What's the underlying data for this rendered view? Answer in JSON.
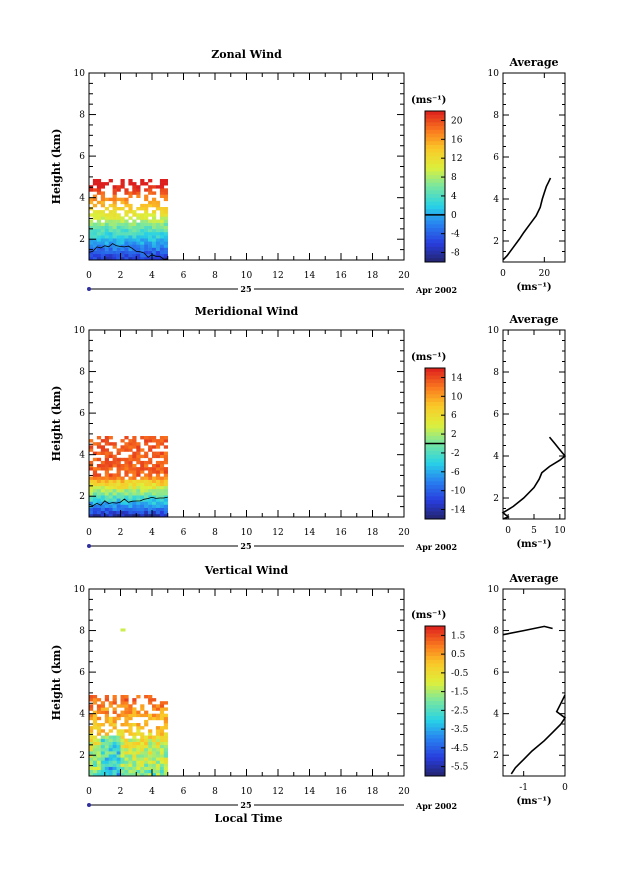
{
  "chart_data": [
    {
      "type": "heatmap",
      "title": "Zonal Wind",
      "ylabel": "Height (km)",
      "xlim": [
        0,
        20
      ],
      "ylim": [
        1,
        10
      ],
      "x_ticks": [
        "0",
        "2",
        "4",
        "6",
        "8",
        "10",
        "12",
        "14",
        "16",
        "18",
        "20"
      ],
      "y_ticks": [
        "2",
        "4",
        "6",
        "8",
        "10"
      ],
      "day_label": "25",
      "date_label": "Apr 2002",
      "colorbar": {
        "unit": "(ms⁻¹)",
        "ticks": [
          "-8",
          "-4",
          "0",
          "4",
          "8",
          "12",
          "16",
          "20"
        ],
        "range": [
          -10,
          22
        ],
        "contour_value": "0"
      },
      "data_extent": {
        "x": [
          0,
          5
        ],
        "y": [
          1,
          4.9
        ]
      },
      "average": {
        "title": "Average",
        "unit": "(ms⁻¹)",
        "x_ticks": [
          "0",
          "20"
        ],
        "xlim": [
          0,
          30
        ],
        "profile": [
          [
            0,
            1.1
          ],
          [
            2,
            1.3
          ],
          [
            5,
            1.7
          ],
          [
            8,
            2.1
          ],
          [
            10,
            2.4
          ],
          [
            13,
            2.8
          ],
          [
            16,
            3.2
          ],
          [
            18,
            3.6
          ],
          [
            19,
            4.0
          ],
          [
            20,
            4.3
          ],
          [
            21,
            4.6
          ],
          [
            22,
            4.8
          ],
          [
            23,
            5.0
          ]
        ]
      }
    },
    {
      "type": "heatmap",
      "title": "Meridional Wind",
      "ylabel": "Height (km)",
      "xlim": [
        0,
        20
      ],
      "ylim": [
        1,
        10
      ],
      "x_ticks": [
        "0",
        "2",
        "4",
        "6",
        "8",
        "10",
        "12",
        "14",
        "16",
        "18",
        "20"
      ],
      "y_ticks": [
        "2",
        "4",
        "6",
        "8",
        "10"
      ],
      "day_label": "25",
      "date_label": "Apr 2002",
      "colorbar": {
        "unit": "(ms⁻¹)",
        "ticks": [
          "-14",
          "-10",
          "-6",
          "-2",
          "2",
          "6",
          "10",
          "14"
        ],
        "range": [
          -16,
          16
        ],
        "contour_value": "0"
      },
      "data_extent": {
        "x": [
          0,
          5
        ],
        "y": [
          1,
          4.9
        ]
      },
      "average": {
        "title": "Average",
        "unit": "(ms⁻¹)",
        "x_ticks": [
          "0",
          "5",
          "10"
        ],
        "xlim": [
          -1,
          11
        ],
        "profile": [
          [
            -1,
            1.0
          ],
          [
            0,
            1.1
          ],
          [
            -1,
            1.3
          ],
          [
            1,
            1.6
          ],
          [
            3,
            2.0
          ],
          [
            5,
            2.5
          ],
          [
            6,
            2.9
          ],
          [
            6.5,
            3.2
          ],
          [
            8,
            3.5
          ],
          [
            10,
            3.8
          ],
          [
            11,
            4.0
          ],
          [
            10,
            4.3
          ],
          [
            9,
            4.6
          ],
          [
            8,
            4.9
          ]
        ]
      }
    },
    {
      "type": "heatmap",
      "title": "Vertical Wind",
      "ylabel": "Height (km)",
      "xlabel": "Local Time",
      "xlim": [
        0,
        20
      ],
      "ylim": [
        1,
        10
      ],
      "x_ticks": [
        "0",
        "2",
        "4",
        "6",
        "8",
        "10",
        "12",
        "14",
        "16",
        "18",
        "20"
      ],
      "y_ticks": [
        "2",
        "4",
        "6",
        "8",
        "10"
      ],
      "day_label": "25",
      "date_label": "Apr 2002",
      "colorbar": {
        "unit": "(ms⁻¹)",
        "ticks": [
          "1.5",
          "0.5",
          "-0.5",
          "-1.5",
          "-2.5",
          "-3.5",
          "-4.5",
          "-5.5"
        ],
        "range": [
          -6,
          2
        ]
      },
      "data_extent": {
        "x": [
          0,
          5
        ],
        "y": [
          1,
          4.8
        ]
      },
      "average": {
        "title": "Average",
        "unit": "(ms⁻¹)",
        "x_ticks": [
          "-1",
          "0"
        ],
        "xlim": [
          -1.5,
          0
        ],
        "profile": [
          [
            -1.3,
            1.1
          ],
          [
            -1.2,
            1.4
          ],
          [
            -1.0,
            1.8
          ],
          [
            -0.8,
            2.2
          ],
          [
            -0.5,
            2.7
          ],
          [
            -0.3,
            3.1
          ],
          [
            -0.1,
            3.5
          ],
          [
            0,
            3.8
          ],
          [
            -0.2,
            4.1
          ],
          [
            -0.1,
            4.5
          ],
          [
            0,
            4.9
          ],
          [
            -1.5,
            7.8
          ],
          [
            -1.0,
            8.0
          ],
          [
            -0.5,
            8.2
          ],
          [
            -0.3,
            8.1
          ]
        ]
      }
    }
  ]
}
